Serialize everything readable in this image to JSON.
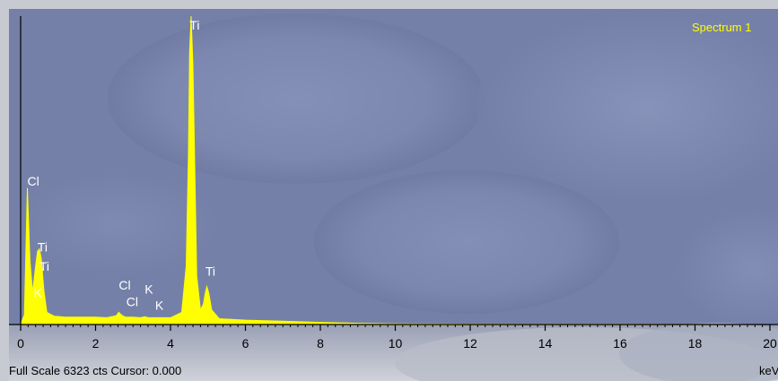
{
  "panel": {
    "spectrum_label": "Spectrum 1",
    "status_text": "Full Scale 6323 cts Cursor: 0.000",
    "unit_label": "keV"
  },
  "colors": {
    "background": "#7580a8",
    "trace": "#ffff00",
    "peak_label": "#ffffff",
    "axis": "#000000",
    "spectrum_label": "#ffff00"
  },
  "chart_data": {
    "type": "area",
    "title": "",
    "xlabel": "keV",
    "ylabel": "",
    "full_scale_counts": 6323,
    "xlim": [
      0,
      20
    ],
    "ylim": [
      0,
      6323
    ],
    "x_ticks": [
      0,
      2,
      4,
      6,
      8,
      10,
      12,
      14,
      16,
      18,
      20
    ],
    "x": [
      0.0,
      0.1,
      0.18,
      0.25,
      0.32,
      0.4,
      0.45,
      0.5,
      0.55,
      0.62,
      0.7,
      0.9,
      1.2,
      1.6,
      2.0,
      2.3,
      2.55,
      2.62,
      2.7,
      2.8,
      3.0,
      3.2,
      3.31,
      3.4,
      3.6,
      4.0,
      4.3,
      4.42,
      4.48,
      4.51,
      4.55,
      4.6,
      4.7,
      4.8,
      4.88,
      4.93,
      4.97,
      5.02,
      5.1,
      5.3,
      6.0,
      7.0,
      8.0,
      9.0,
      10.0,
      12.0,
      14.0,
      16.0,
      18.0,
      20.0
    ],
    "series": [
      {
        "values": [
          0,
          200,
          2800,
          1300,
          650,
          1200,
          1500,
          1550,
          1350,
          700,
          250,
          170,
          150,
          150,
          150,
          140,
          180,
          250,
          190,
          150,
          150,
          140,
          160,
          140,
          140,
          140,
          250,
          1200,
          3500,
          5600,
          6323,
          5300,
          1000,
          300,
          420,
          650,
          780,
          650,
          300,
          120,
          90,
          70,
          45,
          25,
          15,
          8,
          5,
          3,
          2,
          0
        ]
      }
    ],
    "peak_labels": [
      {
        "text": "Cl",
        "x": 0.18,
        "y": 2850
      },
      {
        "text": "Ti",
        "x": 0.45,
        "y": 1500
      },
      {
        "text": "Ti",
        "x": 0.5,
        "y": 1100
      },
      {
        "text": "K",
        "x": 0.35,
        "y": 560
      },
      {
        "text": "Cl",
        "x": 2.62,
        "y": 720
      },
      {
        "text": "Cl",
        "x": 2.82,
        "y": 380
      },
      {
        "text": "K",
        "x": 3.31,
        "y": 630
      },
      {
        "text": "K",
        "x": 3.59,
        "y": 300
      },
      {
        "text": "Ti",
        "x": 4.51,
        "y": 6050
      },
      {
        "text": "Ti",
        "x": 4.93,
        "y": 1000
      }
    ]
  }
}
